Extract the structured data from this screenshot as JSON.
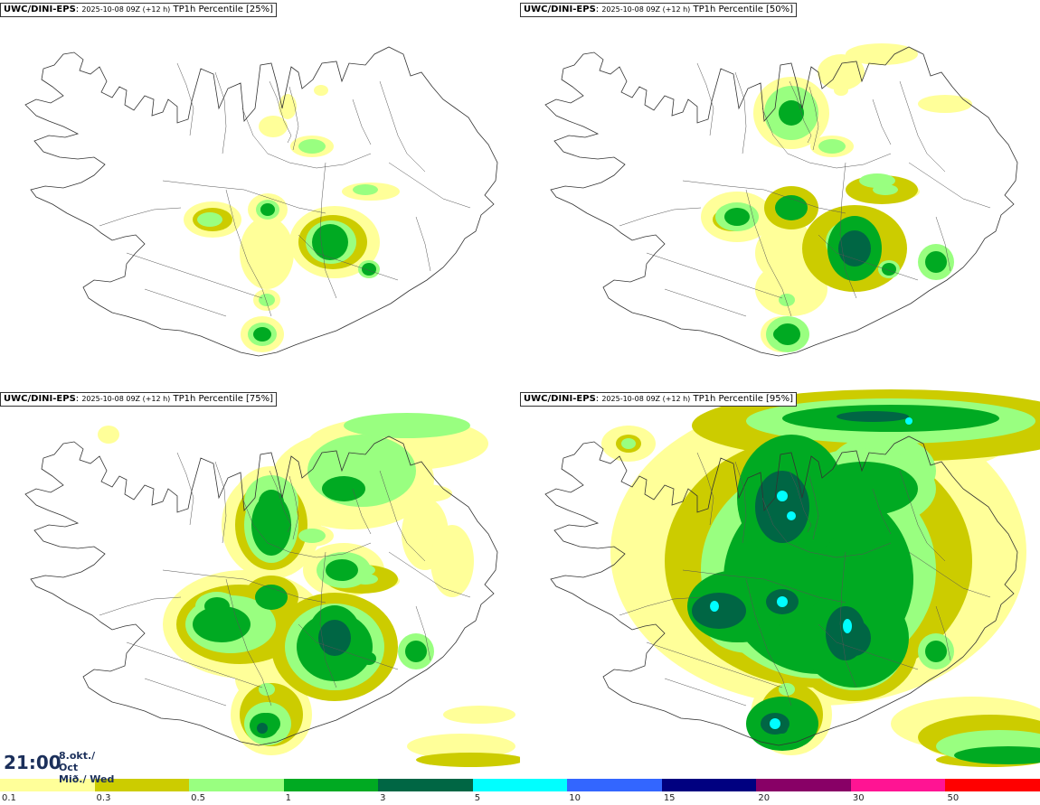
{
  "panels": [
    {
      "title_model": "UWC/DINI-EPS",
      "title_run": "2025-10-08 09Z (+12 h)",
      "title_field": "TP1h Percentile [25%]",
      "level": 1
    },
    {
      "title_model": "UWC/DINI-EPS",
      "title_run": "2025-10-08 09Z (+12 h)",
      "title_field": "TP1h Percentile [50%]",
      "level": 2
    },
    {
      "title_model": "UWC/DINI-EPS",
      "title_run": "2025-10-08 09Z (+12 h)",
      "title_field": "TP1h Percentile [75%]",
      "level": 3
    },
    {
      "title_model": "UWC/DINI-EPS",
      "title_run": "2025-10-08 09Z (+12 h)",
      "title_field": "TP1h Percentile [95%]",
      "level": 4
    }
  ],
  "valid_time": {
    "time": "21:00",
    "date_line1": "8.okt./ Oct",
    "date_line2": "Mið./ Wed"
  },
  "legend": {
    "colors": [
      "#ffff99",
      "#cccc00",
      "#99ff80",
      "#00aa22",
      "#006644",
      "#00ffff",
      "#3366ff",
      "#000080",
      "#880066",
      "#ff1493",
      "#ff0000"
    ],
    "labels": [
      "0.1",
      "0.3",
      "0.5",
      "1",
      "3",
      "5",
      "10",
      "15",
      "20",
      "30",
      "50"
    ]
  }
}
